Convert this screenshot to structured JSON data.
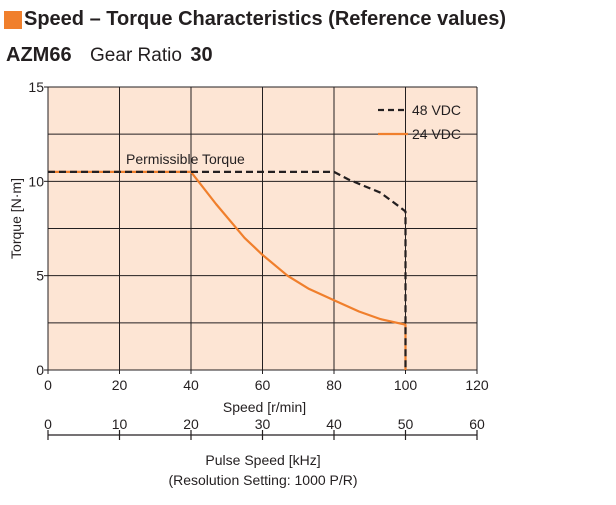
{
  "header": {
    "title": "Speed – Torque Characteristics (Reference values)",
    "model": "AZM66",
    "gear_label": "Gear Ratio",
    "gear_value": "30"
  },
  "colors": {
    "plot_bg": "#fde5d4",
    "accent": "#f07f2c",
    "line_48": "#231f20",
    "line_24": "#f07f2c",
    "grid": "#231f20"
  },
  "chart_data": {
    "type": "line",
    "xlabel": "Speed [r/min]",
    "ylabel": "Torque [N·m]",
    "xlim": [
      0,
      120
    ],
    "ylim": [
      0,
      15
    ],
    "xticks": [
      "0",
      "20",
      "40",
      "60",
      "80",
      "100",
      "120"
    ],
    "yticks": [
      "0",
      "5",
      "10",
      "15"
    ],
    "grid": true,
    "legend_position": "top-right",
    "secondary_x_axis": {
      "label_line1": "Pulse Speed [kHz]",
      "label_line2": "(Resolution Setting: 1000 P/R)",
      "xlim": [
        0,
        60
      ],
      "ticks": [
        "0",
        "10",
        "20",
        "30",
        "40",
        "50",
        "60"
      ]
    },
    "annotation": "Permissible Torque",
    "series": [
      {
        "name": "48 VDC",
        "style": "dashed",
        "x": [
          0,
          40,
          80,
          84,
          93,
          98,
          100,
          100
        ],
        "y": [
          10.5,
          10.5,
          10.5,
          10.1,
          9.4,
          8.7,
          8.4,
          0
        ]
      },
      {
        "name": "24 VDC",
        "style": "solid",
        "x": [
          0,
          40,
          47,
          55,
          60,
          67,
          73,
          80,
          87,
          93,
          100,
          100
        ],
        "y": [
          10.5,
          10.5,
          8.8,
          7.0,
          6.1,
          5.0,
          4.3,
          3.7,
          3.1,
          2.7,
          2.4,
          0
        ]
      }
    ]
  }
}
